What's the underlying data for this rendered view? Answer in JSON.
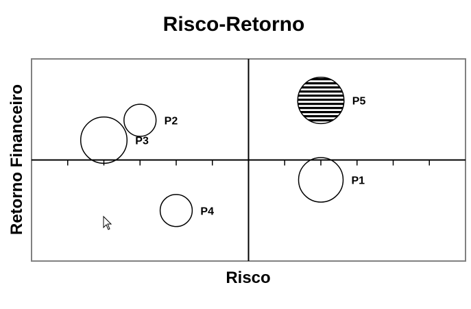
{
  "chart_data": {
    "type": "scatter",
    "title": "Risco-Retorno",
    "xlabel": "Risco",
    "ylabel": "Retorno Financeiro",
    "xlim": [
      -6,
      6
    ],
    "ylim": [
      -2.8,
      2.8
    ],
    "grid": false,
    "points": [
      {
        "label": "P1",
        "x": 2.0,
        "y": -0.55,
        "size": 1.25,
        "fill": "none"
      },
      {
        "label": "P2",
        "x": -3.0,
        "y": 1.1,
        "size": 0.9,
        "fill": "none"
      },
      {
        "label": "P3",
        "x": -4.0,
        "y": 0.55,
        "size": 1.3,
        "fill": "none"
      },
      {
        "label": "P4",
        "x": -2.0,
        "y": -1.4,
        "size": 0.9,
        "fill": "none"
      },
      {
        "label": "P5",
        "x": 2.0,
        "y": 1.65,
        "size": 1.3,
        "fill": "horizontal-hatch"
      }
    ]
  }
}
